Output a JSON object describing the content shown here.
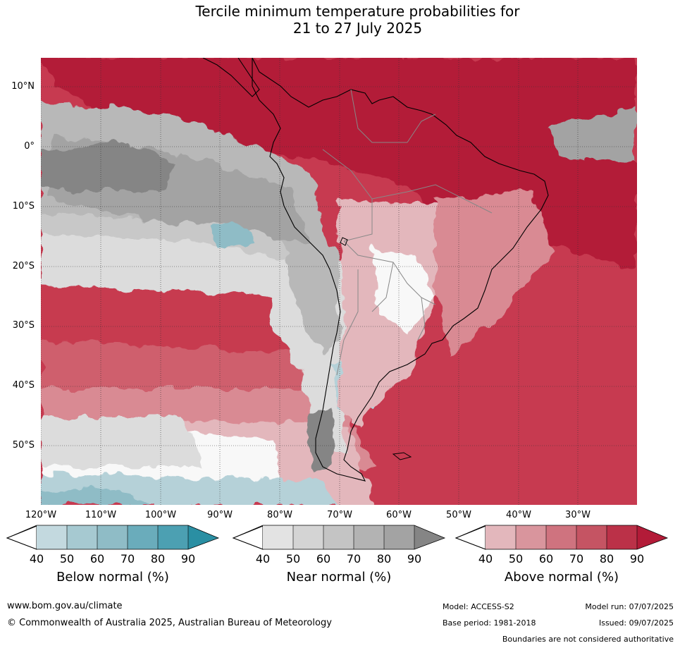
{
  "title": {
    "line1": "Tercile minimum temperature probabilities for",
    "line2": "21 to 27 July 2025"
  },
  "map": {
    "lat_labels": [
      "10°N",
      "0°",
      "10°S",
      "20°S",
      "30°S",
      "40°S",
      "50°S"
    ],
    "lon_labels": [
      "120°W",
      "110°W",
      "100°W",
      "90°W",
      "80°W",
      "70°W",
      "60°W",
      "50°W",
      "40°W",
      "30°W"
    ],
    "colors": {
      "above_90": "#b31b38",
      "above_80": "#c73a50",
      "above_70": "#cf5f6d",
      "above_60": "#d98a93",
      "above_50": "#e3b7bc",
      "near_90": "#858585",
      "near_80": "#a3a3a3",
      "near_70": "#b8b8b8",
      "near_60": "#c8c8c8",
      "near_50": "#dcdcdc",
      "below_80": "#4ca0b2",
      "below_60": "#8fbcc6",
      "below_50": "#b5d1d8",
      "land_border": "#000000",
      "country_border": "#888888"
    }
  },
  "colorbars": [
    {
      "id": "below",
      "title": "Below normal (%)",
      "ticks": [
        "40",
        "50",
        "60",
        "70",
        "80",
        "90"
      ],
      "colors": [
        "#c3d9df",
        "#a6c9d1",
        "#8fbcc6",
        "#6aacbb",
        "#4ca0b2",
        "#2a8fa3"
      ]
    },
    {
      "id": "near",
      "title": "Near normal (%)",
      "ticks": [
        "40",
        "50",
        "60",
        "70",
        "80",
        "90"
      ],
      "colors": [
        "#e3e3e3",
        "#d4d4d4",
        "#c4c4c4",
        "#b3b3b3",
        "#a3a3a3",
        "#858585"
      ]
    },
    {
      "id": "above",
      "title": "Above normal (%)",
      "ticks": [
        "40",
        "50",
        "60",
        "70",
        "80",
        "90"
      ],
      "colors": [
        "#e3b7bc",
        "#d9959d",
        "#cf737f",
        "#c55463",
        "#bb3148",
        "#b31b38"
      ]
    }
  ],
  "footer": {
    "website": "www.bom.gov.au/climate",
    "copyright": "© Commonwealth of Australia 2025, Australian Bureau of Meteorology",
    "model": "Model: ACCESS-S2",
    "base_period": "Base period: 1981-2018",
    "model_run": "Model run: 07/07/2025",
    "issued": "Issued: 09/07/2025",
    "disclaimer": "Boundaries are not considered authoritative"
  }
}
